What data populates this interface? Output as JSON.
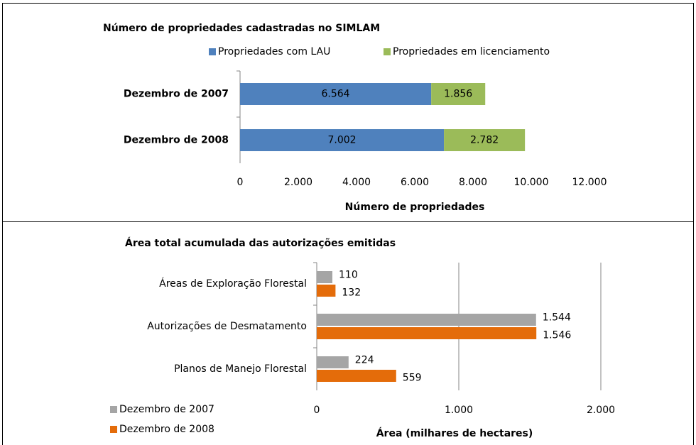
{
  "chart_data": [
    {
      "type": "bar",
      "orientation": "horizontal",
      "stacked": true,
      "title": "Número de propriedades cadastradas no SIMLAM",
      "categories": [
        "Dezembro de 2007",
        "Dezembro de 2008"
      ],
      "series": [
        {
          "name": "Propriedades com LAU",
          "color": "#4f81bd",
          "values": [
            6564,
            7002
          ],
          "value_labels": [
            "6.564",
            "7.002"
          ]
        },
        {
          "name": "Propriedades em licenciamento",
          "color": "#9bbb59",
          "values": [
            1856,
            2782
          ],
          "value_labels": [
            "1.856",
            "2.782"
          ]
        }
      ],
      "xlim": [
        0,
        12000
      ],
      "xticks": [
        0,
        {
          "value": 2000,
          "label": "2.000"
        },
        {
          "value": 4000,
          "label": "4.000"
        },
        {
          "value": 6000,
          "label": "6.000"
        },
        {
          "value": 8000,
          "label": "8.000"
        },
        {
          "value": 10000,
          "label": "10.000"
        },
        {
          "value": 12000,
          "label": "12.000"
        }
      ],
      "xlabel": "Número de propriedades",
      "grid": false,
      "legend": "top"
    },
    {
      "type": "bar",
      "orientation": "horizontal",
      "stacked": false,
      "title": "Área total acumulada das autorizações emitidas",
      "categories": [
        "Áreas de Exploração Florestal",
        "Autorizações de Desmatamento",
        "Planos de Manejo Florestal"
      ],
      "series": [
        {
          "name": "Dezembro de 2007",
          "color": "#a5a5a5",
          "values": [
            110,
            1544,
            224
          ],
          "value_labels": [
            "110",
            "1.544",
            "224"
          ]
        },
        {
          "name": "Dezembro de 2008",
          "color": "#e46c0a",
          "values": [
            132,
            1546,
            559
          ],
          "value_labels": [
            "132",
            "1.546",
            "559"
          ]
        }
      ],
      "xlim": [
        0,
        2000
      ],
      "xticks": [
        0,
        {
          "value": 1000,
          "label": "1.000"
        },
        {
          "value": 2000,
          "label": "2.000"
        }
      ],
      "xlabel": "Área (milhares de hectares)",
      "grid": true,
      "legend": "bottom-left"
    }
  ]
}
